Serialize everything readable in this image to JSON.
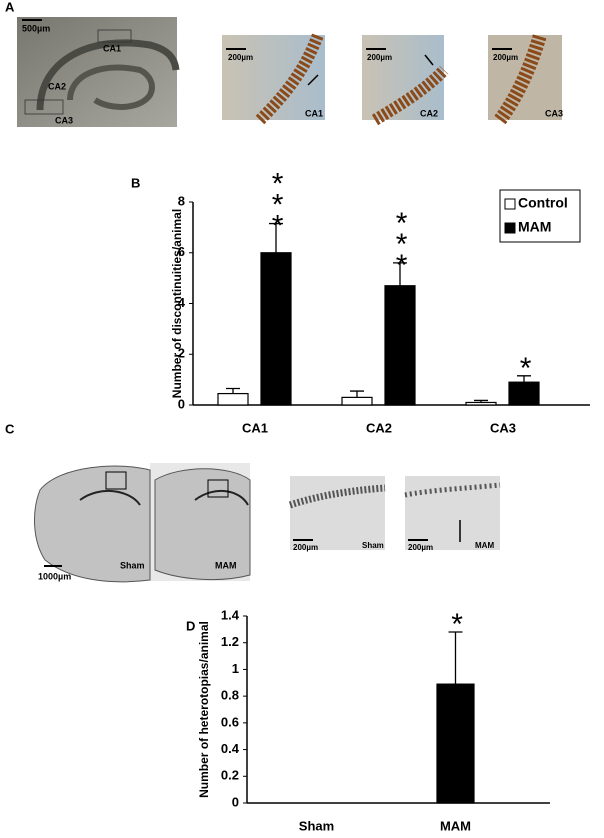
{
  "panel_labels": [
    "A",
    "B",
    "C",
    "D"
  ],
  "panel_a": {
    "overview": {
      "scale_bar": "500µm",
      "regions": [
        "CA1",
        "CA2",
        "CA3"
      ]
    },
    "insets": [
      {
        "scale_bar": "200µm",
        "label": "CA1"
      },
      {
        "scale_bar": "200µm",
        "label": "CA2"
      },
      {
        "scale_bar": "200µm",
        "label": "CA3"
      }
    ]
  },
  "panel_c": {
    "sections": {
      "scale_bar": "1000µm",
      "labels": [
        "Sham",
        "MAM"
      ]
    },
    "insets": [
      {
        "scale_bar": "200µm",
        "label": "Sham"
      },
      {
        "scale_bar": "200µm",
        "label": "MAM"
      }
    ]
  },
  "chart_data": [
    {
      "type": "bar",
      "y_label": "Number of discontinuities/animal",
      "categories": [
        "CA1",
        "CA2",
        "CA3"
      ],
      "series": [
        {
          "name": "Control",
          "color": "#ffffff",
          "values": [
            0.45,
            0.3,
            0.1
          ],
          "errors": [
            0.2,
            0.25,
            0.08
          ]
        },
        {
          "name": "MAM",
          "color": "#000000",
          "values": [
            6.0,
            4.7,
            0.9
          ],
          "errors": [
            1.15,
            0.9,
            0.25
          ],
          "significance": [
            "***",
            "***",
            "*"
          ]
        }
      ],
      "ylim": [
        0,
        8
      ],
      "yticks": [
        0,
        2,
        4,
        6,
        8
      ],
      "grid": false,
      "legend": "upper right"
    },
    {
      "type": "bar",
      "y_label": "Number of heterotopias/animal",
      "categories": [
        "Sham",
        "MAM"
      ],
      "color": "#000000",
      "values": [
        0,
        0.89
      ],
      "errors": [
        0,
        0.39
      ],
      "significance": [
        null,
        "*"
      ],
      "ylim": [
        0,
        1.4
      ],
      "yticks": [
        0,
        0.2,
        0.4,
        0.6,
        0.8,
        1,
        1.2,
        1.4
      ],
      "grid": false
    }
  ]
}
